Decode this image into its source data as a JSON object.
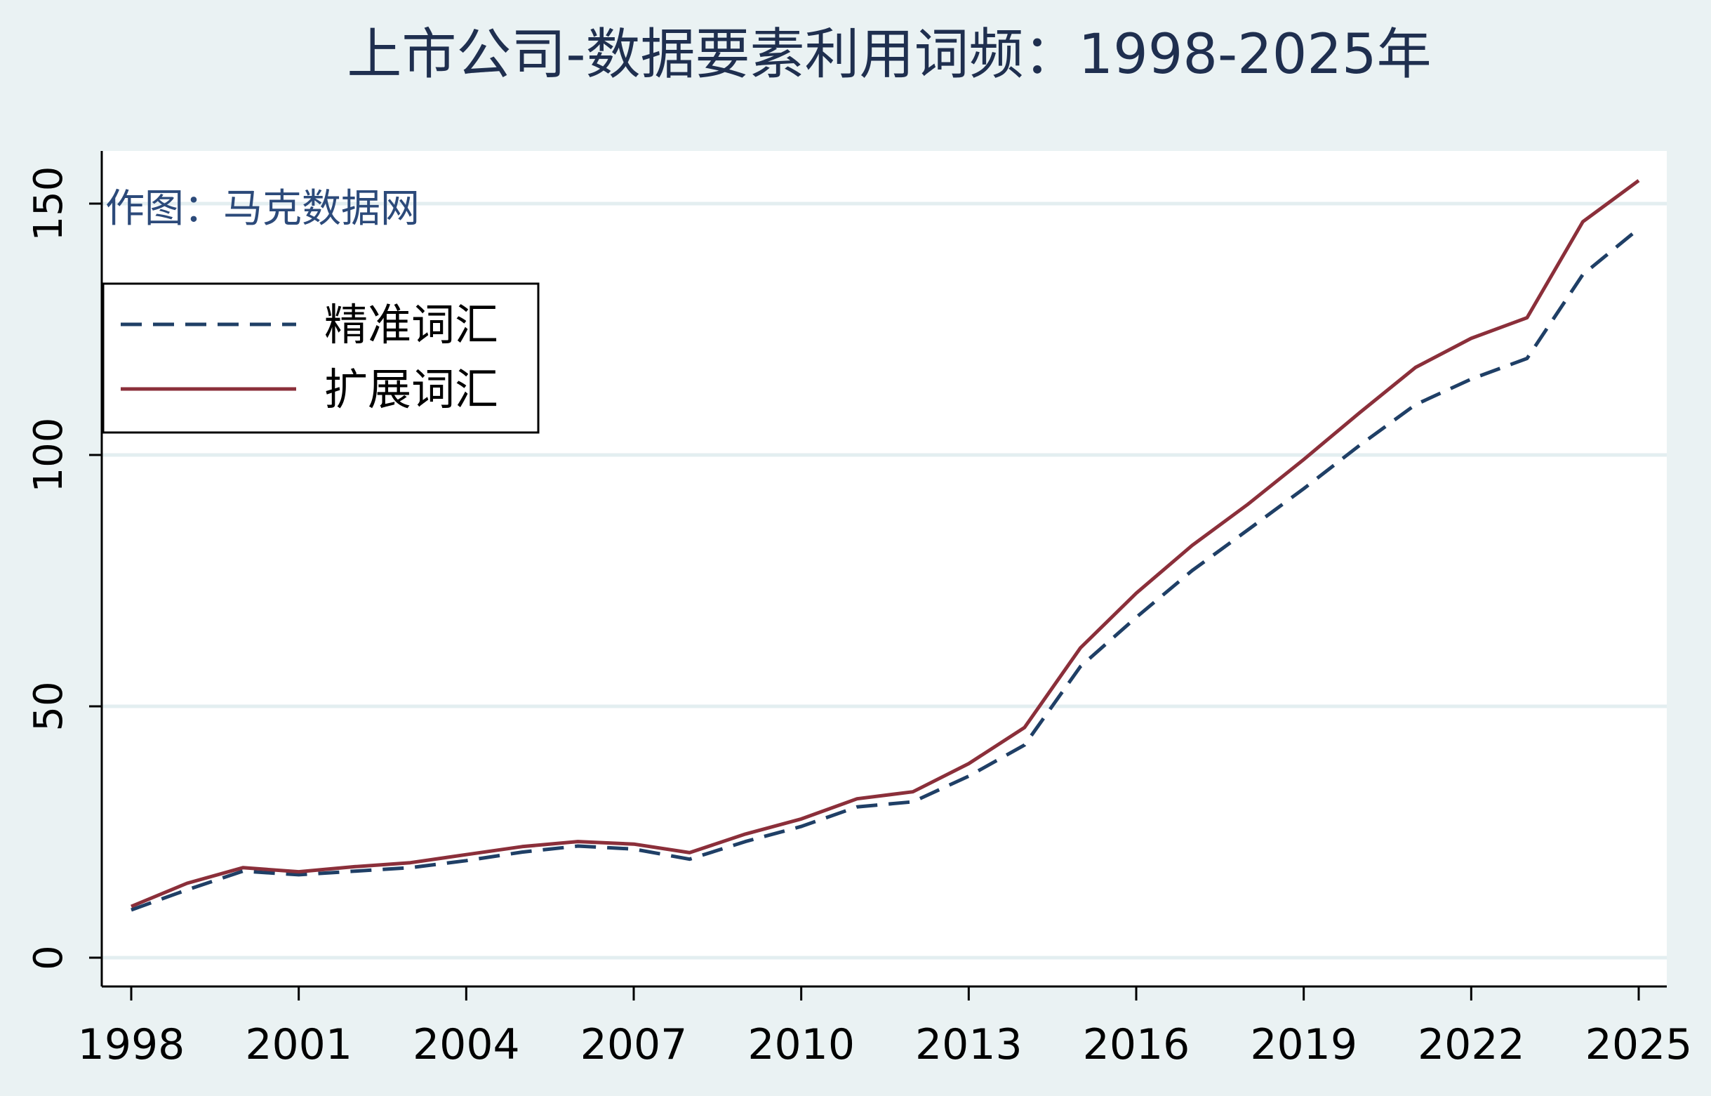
{
  "chart_data": {
    "type": "line",
    "title": "上市公司-数据要素利用词频：1998-2025年",
    "annotation": "作图：马克数据网",
    "xlabel": "",
    "ylabel": "",
    "x": [
      1998,
      1999,
      2000,
      2001,
      2002,
      2003,
      2004,
      2005,
      2006,
      2007,
      2008,
      2009,
      2010,
      2011,
      2012,
      2013,
      2014,
      2015,
      2016,
      2017,
      2018,
      2019,
      2020,
      2021,
      2022,
      2023,
      2024,
      2025
    ],
    "x_ticks": [
      "1998",
      "2001",
      "2004",
      "2007",
      "2010",
      "2013",
      "2016",
      "2019",
      "2022",
      "2025"
    ],
    "y_ticks": [
      "0",
      "50",
      "100",
      "150"
    ],
    "xlim": [
      1998,
      2025
    ],
    "ylim": [
      0,
      150
    ],
    "grid": "horizontal",
    "legend_position": "upper-left",
    "series": [
      {
        "name": "精准词汇",
        "style": "dashed",
        "color": "#1f3f66",
        "values": [
          9.5,
          13.5,
          17.2,
          16.5,
          17.2,
          17.9,
          19.3,
          21.0,
          22.2,
          21.6,
          19.6,
          23.1,
          26.1,
          30.0,
          31.0,
          36.1,
          42.3,
          57.9,
          67.7,
          77.0,
          85.1,
          93.3,
          101.9,
          110.0,
          115.1,
          119.2,
          135.9,
          145.0
        ]
      },
      {
        "name": "扩展词汇",
        "style": "solid",
        "color": "#8b2f3a",
        "values": [
          10.2,
          14.8,
          17.9,
          17.1,
          18.1,
          18.9,
          20.5,
          22.1,
          23.1,
          22.6,
          20.9,
          24.6,
          27.6,
          31.6,
          33.0,
          38.6,
          45.8,
          61.6,
          72.5,
          82.0,
          90.2,
          99.1,
          108.4,
          117.4,
          123.2,
          127.3,
          146.4,
          154.6
        ]
      }
    ]
  }
}
